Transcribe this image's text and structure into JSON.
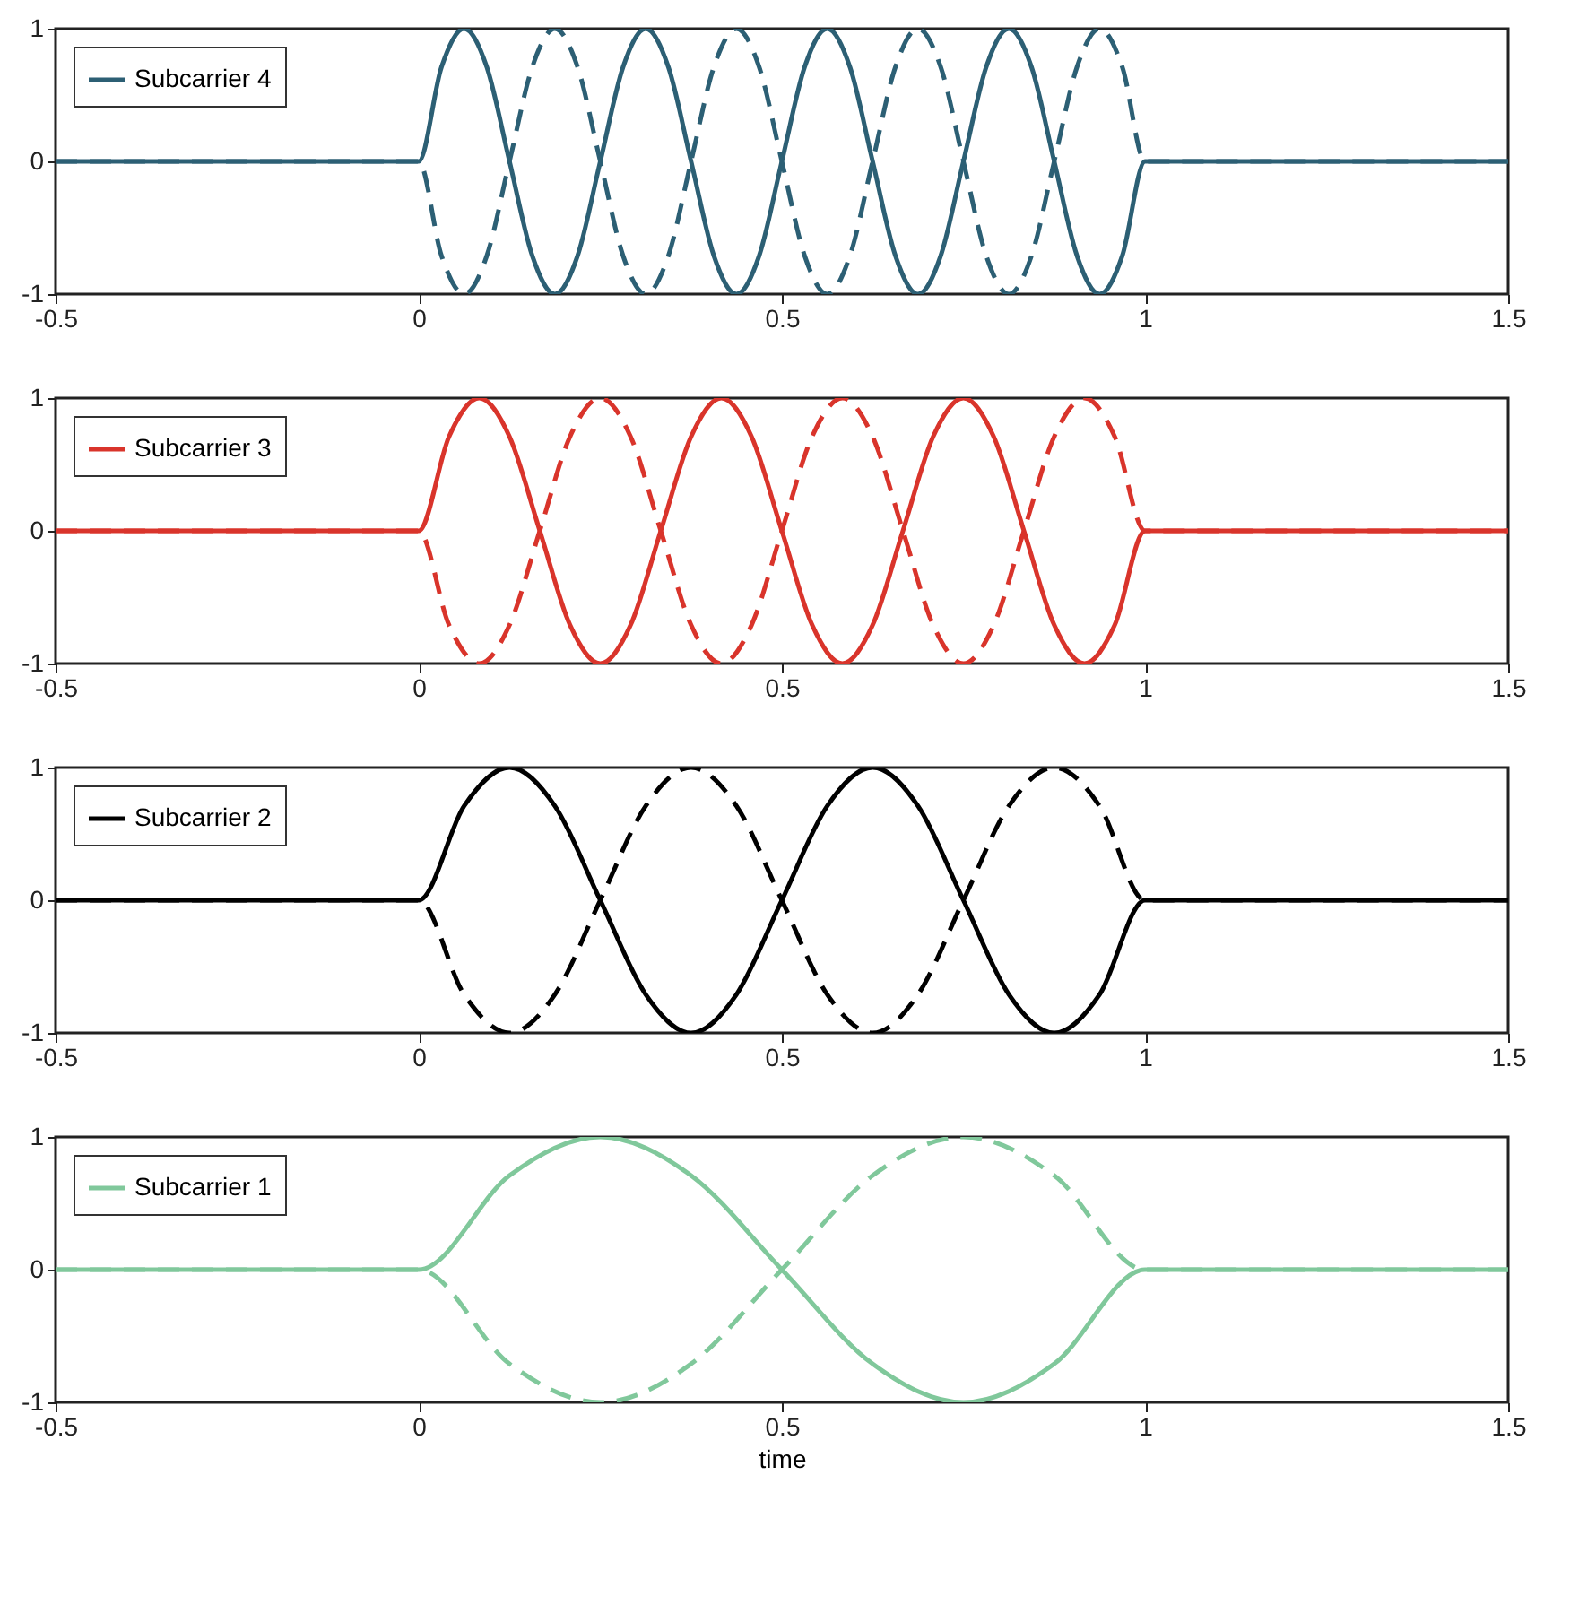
{
  "chart_data": [
    {
      "type": "line",
      "x": [
        -0.5,
        0,
        0.0313,
        0.0625,
        0.0938,
        0.125,
        0.1563,
        0.1875,
        0.2188,
        0.25,
        0.2813,
        0.3125,
        0.3438,
        0.375,
        0.4063,
        0.4375,
        0.4688,
        0.5,
        0.5313,
        0.5625,
        0.5938,
        0.625,
        0.6563,
        0.6875,
        0.7188,
        0.75,
        0.7813,
        0.8125,
        0.8438,
        0.875,
        0.9063,
        0.9375,
        0.9688,
        1,
        1.5
      ],
      "series": [
        {
          "name": "Subcarrier 4",
          "color": "#2c5f74",
          "line_style": "solid",
          "values": [
            0,
            0,
            0.71,
            1,
            0.71,
            0,
            -0.71,
            -1,
            -0.71,
            0,
            0.71,
            1,
            0.71,
            0,
            -0.71,
            -1,
            -0.71,
            0,
            0.71,
            1,
            0.71,
            0,
            -0.71,
            -1,
            -0.71,
            0,
            0.71,
            1,
            0.71,
            0,
            -0.71,
            -1,
            -0.71,
            0,
            0
          ]
        },
        {
          "color": "#2c5f74",
          "line_style": "dashed",
          "values": [
            0,
            0,
            -0.71,
            -1,
            -0.71,
            0,
            0.71,
            1,
            0.71,
            0,
            -0.71,
            -1,
            -0.71,
            0,
            0.71,
            1,
            0.71,
            0,
            -0.71,
            -1,
            -0.71,
            0,
            0.71,
            1,
            0.71,
            0,
            -0.71,
            -1,
            -0.71,
            0,
            0.71,
            1,
            0.71,
            0,
            0
          ]
        }
      ],
      "xlim": [
        -0.5,
        1.5
      ],
      "xticks": [
        -0.5,
        0,
        0.5,
        1,
        1.5
      ],
      "ylim": [
        -1,
        1
      ],
      "yticks": [
        -1,
        0,
        1
      ],
      "legend": "top left"
    },
    {
      "type": "line",
      "x": [
        -0.5,
        0,
        0.0417,
        0.0833,
        0.125,
        0.1667,
        0.2083,
        0.25,
        0.2917,
        0.3333,
        0.375,
        0.4167,
        0.4583,
        0.5,
        0.5417,
        0.5833,
        0.625,
        0.6667,
        0.7083,
        0.75,
        0.7917,
        0.8333,
        0.875,
        0.9167,
        0.9583,
        1,
        1.5
      ],
      "series": [
        {
          "name": "Subcarrier 3",
          "color": "#d9342b",
          "line_style": "solid",
          "values": [
            0,
            0,
            0.71,
            1,
            0.71,
            0,
            -0.71,
            -1,
            -0.71,
            0,
            0.71,
            1,
            0.71,
            0,
            -0.71,
            -1,
            -0.71,
            0,
            0.71,
            1,
            0.71,
            0,
            -0.71,
            -1,
            -0.71,
            0,
            0
          ]
        },
        {
          "color": "#d9342b",
          "line_style": "dashed",
          "values": [
            0,
            0,
            -0.71,
            -1,
            -0.71,
            0,
            0.71,
            1,
            0.71,
            0,
            -0.71,
            -1,
            -0.71,
            0,
            0.71,
            1,
            0.71,
            0,
            -0.71,
            -1,
            -0.71,
            0,
            0.71,
            1,
            0.71,
            0,
            0
          ]
        }
      ],
      "xlim": [
        -0.5,
        1.5
      ],
      "xticks": [
        -0.5,
        0,
        0.5,
        1,
        1.5
      ],
      "ylim": [
        -1,
        1
      ],
      "yticks": [
        -1,
        0,
        1
      ],
      "legend": "top left"
    },
    {
      "type": "line",
      "x": [
        -0.5,
        0,
        0.0625,
        0.125,
        0.1875,
        0.25,
        0.3125,
        0.375,
        0.4375,
        0.5,
        0.5625,
        0.625,
        0.6875,
        0.75,
        0.8125,
        0.875,
        0.9375,
        1,
        1.5
      ],
      "series": [
        {
          "name": "Subcarrier 2",
          "color": "#000000",
          "line_style": "solid",
          "values": [
            0,
            0,
            0.71,
            1,
            0.71,
            0,
            -0.71,
            -1,
            -0.71,
            0,
            0.71,
            1,
            0.71,
            0,
            -0.71,
            -1,
            -0.71,
            0,
            0
          ]
        },
        {
          "color": "#000000",
          "line_style": "dashed",
          "values": [
            0,
            0,
            -0.71,
            -1,
            -0.71,
            0,
            0.71,
            1,
            0.71,
            0,
            -0.71,
            -1,
            -0.71,
            0,
            0.71,
            1,
            0.71,
            0,
            0
          ]
        }
      ],
      "xlim": [
        -0.5,
        1.5
      ],
      "xticks": [
        -0.5,
        0,
        0.5,
        1,
        1.5
      ],
      "ylim": [
        -1,
        1
      ],
      "yticks": [
        -1,
        0,
        1
      ],
      "legend": "top left"
    },
    {
      "type": "line",
      "x": [
        -0.5,
        0,
        0.125,
        0.25,
        0.375,
        0.5,
        0.625,
        0.75,
        0.875,
        1,
        1.5
      ],
      "series": [
        {
          "name": "Subcarrier 1",
          "color": "#80c89b",
          "line_style": "solid",
          "values": [
            0,
            0,
            0.71,
            1,
            0.71,
            0,
            -0.71,
            -1,
            -0.71,
            0,
            0
          ]
        },
        {
          "color": "#80c89b",
          "line_style": "dashed",
          "values": [
            0,
            0,
            -0.71,
            -1,
            -0.71,
            0,
            0.71,
            1,
            0.71,
            0,
            0
          ]
        }
      ],
      "xlim": [
        -0.5,
        1.5
      ],
      "xticks": [
        -0.5,
        0,
        0.5,
        1,
        1.5
      ],
      "ylim": [
        -1,
        1
      ],
      "yticks": [
        -1,
        0,
        1
      ],
      "legend": "top left",
      "xlabel": "time"
    }
  ]
}
